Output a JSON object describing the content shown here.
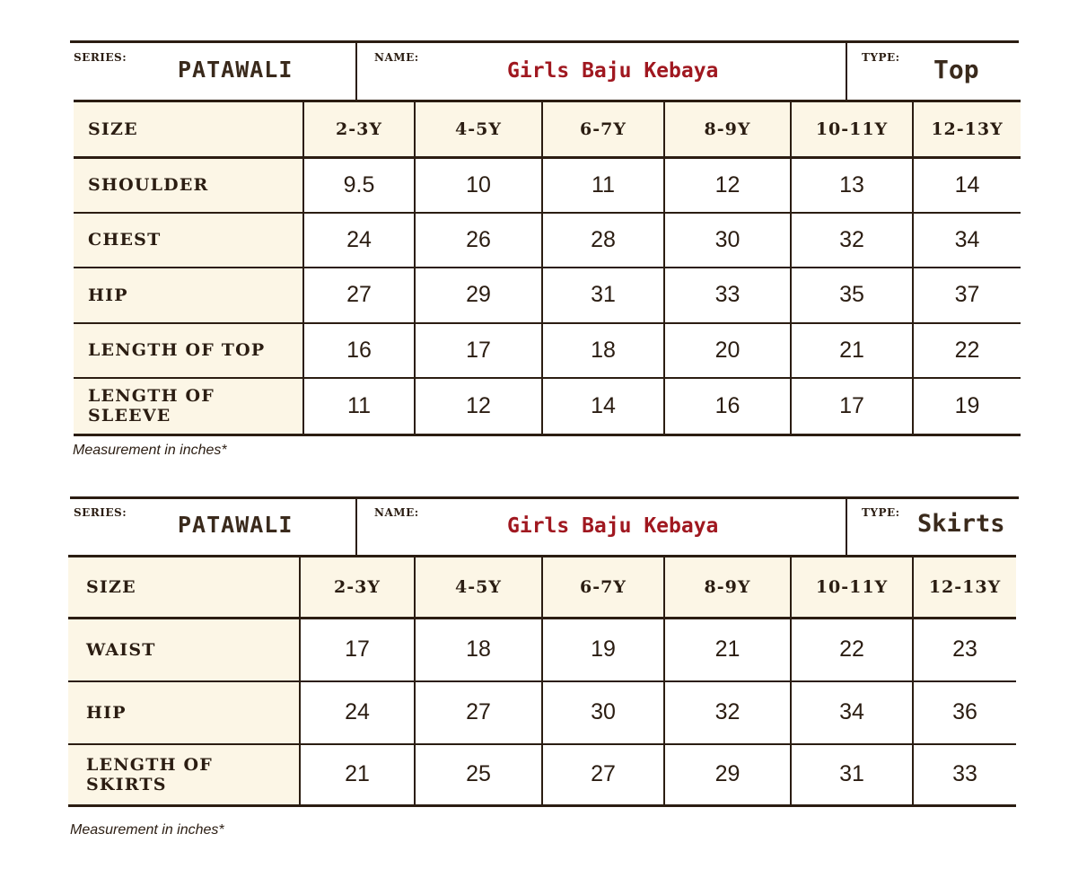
{
  "top_chart": {
    "series_label": "SERIES:",
    "series_value": "PATAWALI",
    "name_label": "NAME:",
    "name_value": "Girls Baju Kebaya",
    "type_label": "TYPE:",
    "type_value": "Top",
    "size_label": "SIZE",
    "sizes": [
      "2-3Y",
      "4-5Y",
      "6-7Y",
      "8-9Y",
      "10-11Y",
      "12-13Y"
    ],
    "rows": [
      {
        "label": "SHOULDER",
        "values": [
          "9.5",
          "10",
          "11",
          "12",
          "13",
          "14"
        ]
      },
      {
        "label": "CHEST",
        "values": [
          "24",
          "26",
          "28",
          "30",
          "32",
          "34"
        ]
      },
      {
        "label": "HIP",
        "values": [
          "27",
          "29",
          "31",
          "33",
          "35",
          "37"
        ]
      },
      {
        "label": "LENGTH OF TOP",
        "values": [
          "16",
          "17",
          "18",
          "20",
          "21",
          "22"
        ]
      },
      {
        "label": "LENGTH OF SLEEVE",
        "values": [
          "11",
          "12",
          "14",
          "16",
          "17",
          "19"
        ]
      }
    ],
    "note": "Measurement in inches*"
  },
  "skirt_chart": {
    "series_label": "SERIES:",
    "series_value": "PATAWALI",
    "name_label": "NAME:",
    "name_value": "Girls Baju Kebaya",
    "type_label": "TYPE:",
    "type_value": "Skirts",
    "size_label": "SIZE",
    "sizes": [
      "2-3Y",
      "4-5Y",
      "6-7Y",
      "8-9Y",
      "10-11Y",
      "12-13Y"
    ],
    "rows": [
      {
        "label": "WAIST",
        "values": [
          "17",
          "18",
          "19",
          "21",
          "22",
          "23"
        ]
      },
      {
        "label": "HIP",
        "values": [
          "24",
          "27",
          "30",
          "32",
          "34",
          "36"
        ]
      },
      {
        "label": "LENGTH OF SKIRTS",
        "values": [
          "21",
          "25",
          "27",
          "29",
          "31",
          "33"
        ]
      }
    ],
    "note": "Measurement in inches*"
  }
}
